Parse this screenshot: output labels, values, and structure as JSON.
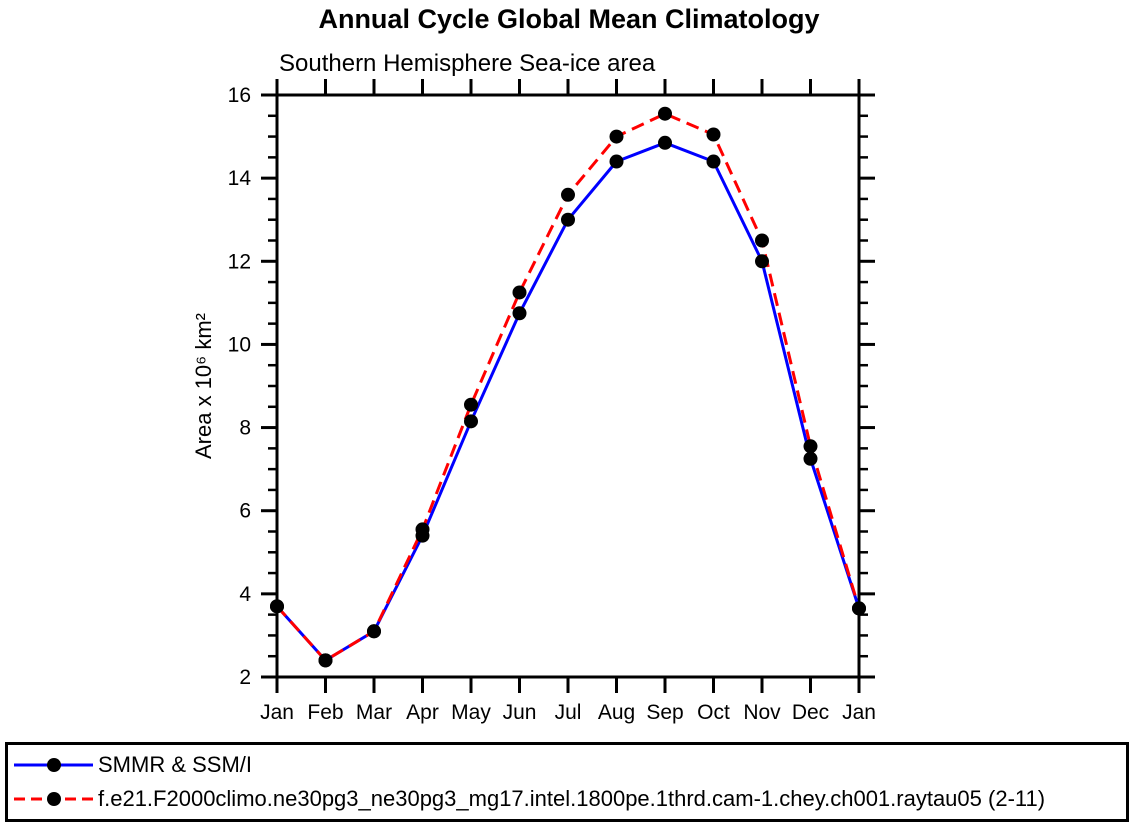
{
  "page": {
    "background": "#ffffff",
    "axis_color": "#000000",
    "text_color": "#000000"
  },
  "chart_data": {
    "type": "line",
    "title": "Annual Cycle Global Mean Climatology",
    "subtitle": "Southern Hemisphere Sea-ice area",
    "ylabel": "Area x 10⁶ km²",
    "xlabel": "",
    "categories": [
      "Jan",
      "Feb",
      "Mar",
      "Apr",
      "May",
      "Jun",
      "Jul",
      "Aug",
      "Sep",
      "Oct",
      "Nov",
      "Dec",
      "Jan"
    ],
    "ylim": [
      2,
      16
    ],
    "y_major_tick_step": 2,
    "y_minor_tick_step": 0.5,
    "y_major_tick_labels": [
      "2",
      "4",
      "6",
      "8",
      "10",
      "12",
      "14",
      "16"
    ],
    "grid": false,
    "tick_direction": "out",
    "legend_position": "bottom-left-box",
    "series": [
      {
        "name": "SMMR & SSM/I",
        "color": "#0000ff",
        "line_style": "solid",
        "marker": "filled-circle",
        "marker_color": "#000000",
        "values": [
          3.7,
          2.4,
          3.1,
          5.4,
          8.15,
          10.75,
          13.0,
          14.4,
          14.85,
          14.4,
          12.0,
          7.25,
          3.65
        ]
      },
      {
        "name": "f.e21.F2000climo.ne30pg3_ne30pg3_mg17.intel.1800pe.1thrd.cam-1.chey.ch001.raytau05 (2-11)",
        "color": "#ff0000",
        "line_style": "dashed",
        "marker": "filled-circle",
        "marker_color": "#000000",
        "values": [
          3.7,
          2.4,
          3.1,
          5.55,
          8.55,
          11.25,
          13.6,
          15.0,
          15.55,
          15.05,
          12.5,
          7.55,
          3.65
        ]
      }
    ]
  }
}
